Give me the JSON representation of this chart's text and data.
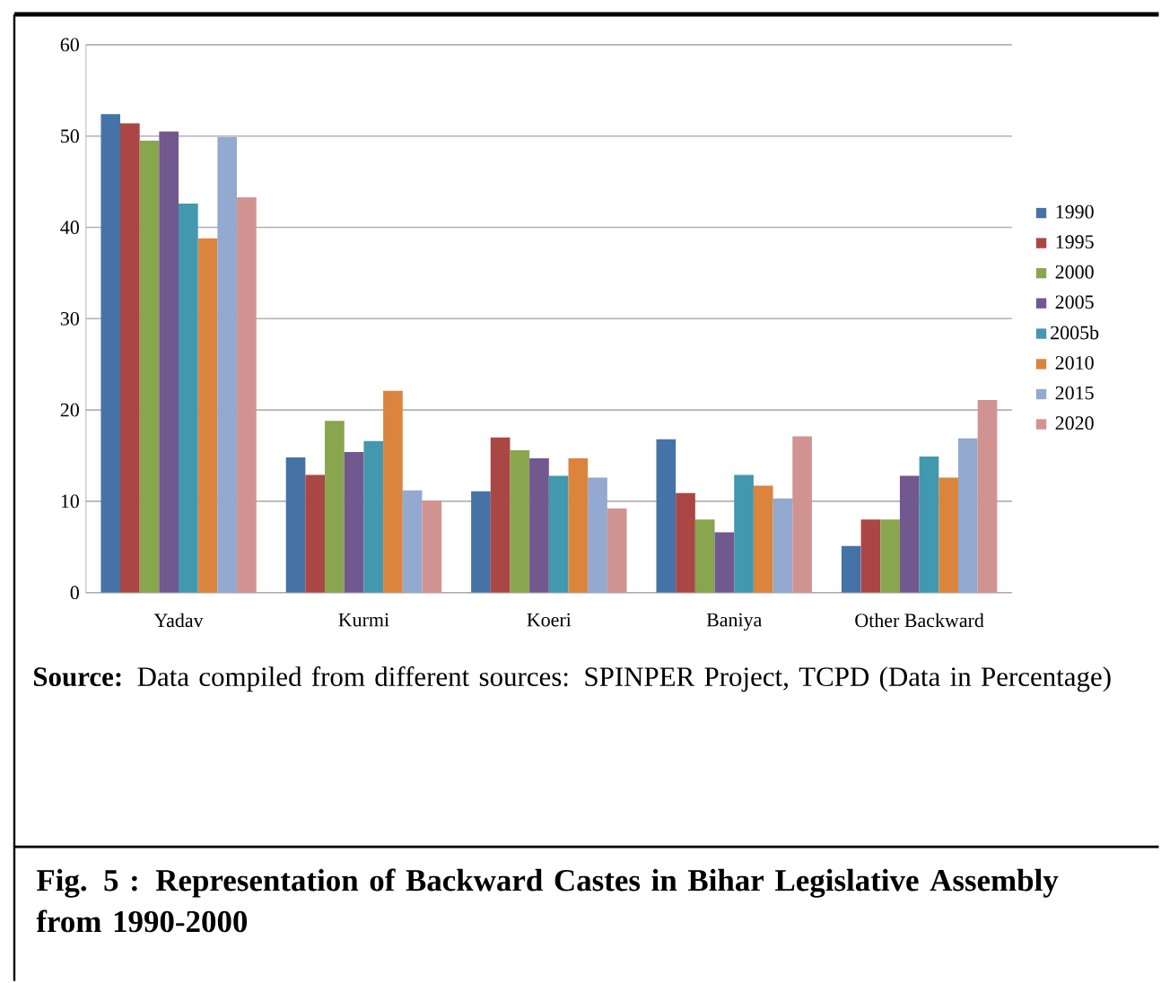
{
  "chart_data": {
    "type": "bar",
    "title": "Fig. 5 : Representation of Backward Castes in Bihar Legislative Assembly from 1990-2000",
    "annotations": [
      "**Source:** Data compiled from different sources: SPINPER Project, TCPD (Data in Percentage)"
    ],
    "categories": [
      "Yadav",
      "Kurmi",
      "Koeri",
      "Baniya",
      "Other Backward"
    ],
    "series": [
      {
        "name": "1990",
        "color": "#4572a7",
        "values": [
          52.4,
          14.8,
          11.1,
          16.8,
          5.1
        ]
      },
      {
        "name": "1995",
        "color": "#aa4643",
        "values": [
          51.4,
          12.9,
          17.0,
          10.9,
          8.0
        ]
      },
      {
        "name": "2000",
        "color": "#89a54e",
        "values": [
          49.5,
          18.8,
          15.6,
          8.0,
          8.0
        ]
      },
      {
        "name": "2005",
        "color": "#71588f",
        "values": [
          50.5,
          15.4,
          14.7,
          6.6,
          12.8
        ]
      },
      {
        "name": "2005b",
        "color": "#4198af",
        "values": [
          42.6,
          16.6,
          12.8,
          12.9,
          14.9
        ]
      },
      {
        "name": "2010",
        "color": "#db843d",
        "values": [
          38.8,
          22.1,
          14.7,
          11.7,
          12.6
        ]
      },
      {
        "name": "2015",
        "color": "#93a9cf",
        "values": [
          49.9,
          11.2,
          12.6,
          10.3,
          16.9
        ]
      },
      {
        "name": "2020",
        "color": "#d19392",
        "values": [
          43.3,
          10.1,
          9.2,
          17.1,
          21.1
        ]
      }
    ],
    "ylim": [
      0,
      60
    ],
    "yticks": [
      0,
      10,
      20,
      30,
      40,
      50,
      60
    ],
    "grid": "y",
    "legend": "right"
  }
}
